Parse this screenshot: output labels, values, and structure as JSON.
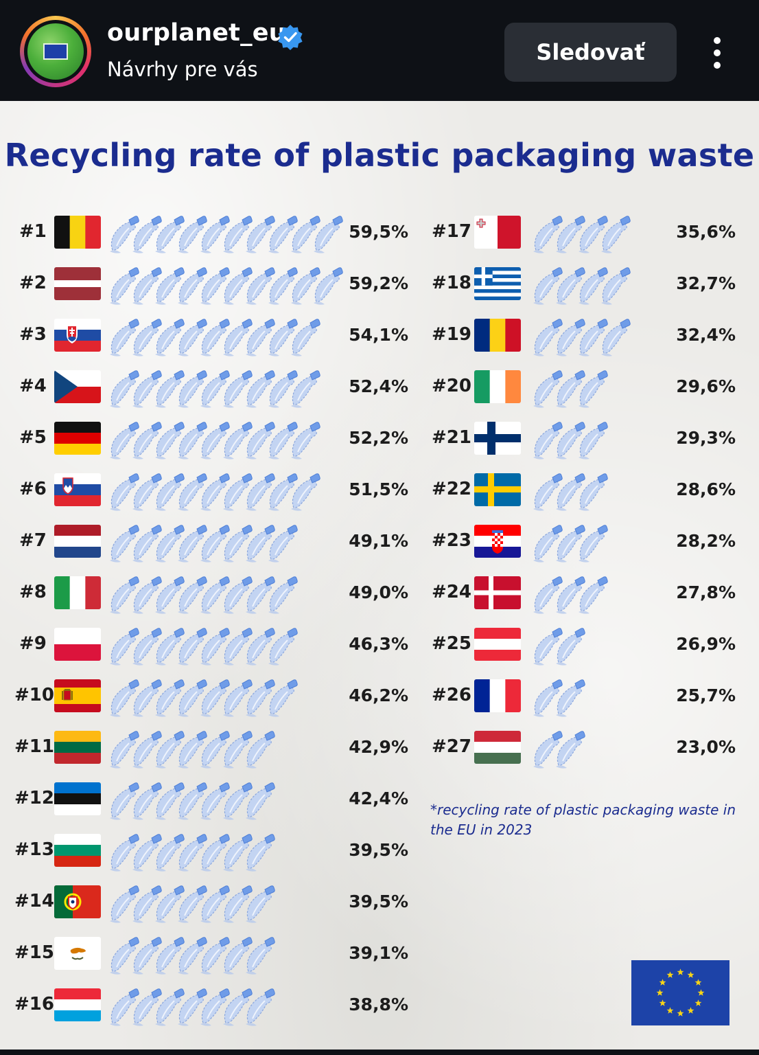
{
  "header": {
    "account_name": "ourplanet_eu",
    "subtitle": "Návrhy pre vás",
    "follow_label": "Sledovať",
    "verified_icon": "verified-badge-icon",
    "menu_icon": "more-vertical-icon",
    "colors": {
      "background": "#0e1116",
      "button": "#2a2e35",
      "verified": "#3897f0"
    }
  },
  "infographic": {
    "title": "Recycling rate of plastic packaging waste",
    "footnote": "*recycling rate of plastic packaging waste in the EU in 2023",
    "logo": "eu-flag-logo",
    "colors": {
      "title": "#1b2c8f",
      "text": "#1c1c1c",
      "bottle": "#b9cdf0"
    }
  },
  "chart_data": {
    "type": "bar",
    "title": "Recycling rate of plastic packaging waste",
    "unit": "%",
    "ranking": [
      {
        "rank": "#1",
        "country": "Belgium",
        "flag": "belgium",
        "label": "59,5%",
        "value": 59.5
      },
      {
        "rank": "#2",
        "country": "Latvia",
        "flag": "latvia",
        "label": "59,2%",
        "value": 59.2
      },
      {
        "rank": "#3",
        "country": "Slovakia",
        "flag": "slovakia",
        "label": "54,1%",
        "value": 54.1
      },
      {
        "rank": "#4",
        "country": "Czechia",
        "flag": "czechia",
        "label": "52,4%",
        "value": 52.4
      },
      {
        "rank": "#5",
        "country": "Germany",
        "flag": "germany",
        "label": "52,2%",
        "value": 52.2
      },
      {
        "rank": "#6",
        "country": "Slovenia",
        "flag": "slovenia",
        "label": "51,5%",
        "value": 51.5
      },
      {
        "rank": "#7",
        "country": "Netherlands",
        "flag": "netherlands",
        "label": "49,1%",
        "value": 49.1
      },
      {
        "rank": "#8",
        "country": "Italy",
        "flag": "italy",
        "label": "49,0%",
        "value": 49.0
      },
      {
        "rank": "#9",
        "country": "Poland",
        "flag": "poland",
        "label": "46,3%",
        "value": 46.3
      },
      {
        "rank": "#10",
        "country": "Spain",
        "flag": "spain",
        "label": "46,2%",
        "value": 46.2
      },
      {
        "rank": "#11",
        "country": "Lithuania",
        "flag": "lithuania",
        "label": "42,9%",
        "value": 42.9
      },
      {
        "rank": "#12",
        "country": "Estonia",
        "flag": "estonia",
        "label": "42,4%",
        "value": 42.4
      },
      {
        "rank": "#13",
        "country": "Bulgaria",
        "flag": "bulgaria",
        "label": "39,5%",
        "value": 39.5
      },
      {
        "rank": "#14",
        "country": "Portugal",
        "flag": "portugal",
        "label": "39,5%",
        "value": 39.5
      },
      {
        "rank": "#15",
        "country": "Cyprus",
        "flag": "cyprus",
        "label": "39,1%",
        "value": 39.1
      },
      {
        "rank": "#16",
        "country": "Luxembourg",
        "flag": "luxembourg",
        "label": "38,8%",
        "value": 38.8
      },
      {
        "rank": "#17",
        "country": "Malta",
        "flag": "malta",
        "label": "35,6%",
        "value": 35.6
      },
      {
        "rank": "#18",
        "country": "Greece",
        "flag": "greece",
        "label": "32,7%",
        "value": 32.7
      },
      {
        "rank": "#19",
        "country": "Romania",
        "flag": "romania",
        "label": "32,4%",
        "value": 32.4
      },
      {
        "rank": "#20",
        "country": "Ireland",
        "flag": "ireland",
        "label": "29,6%",
        "value": 29.6
      },
      {
        "rank": "#21",
        "country": "Finland",
        "flag": "finland",
        "label": "29,3%",
        "value": 29.3
      },
      {
        "rank": "#22",
        "country": "Sweden",
        "flag": "sweden",
        "label": "28,6%",
        "value": 28.6
      },
      {
        "rank": "#23",
        "country": "Croatia",
        "flag": "croatia",
        "label": "28,2%",
        "value": 28.2
      },
      {
        "rank": "#24",
        "country": "Denmark",
        "flag": "denmark",
        "label": "27,8%",
        "value": 27.8
      },
      {
        "rank": "#25",
        "country": "Austria",
        "flag": "austria",
        "label": "26,9%",
        "value": 26.9
      },
      {
        "rank": "#26",
        "country": "France",
        "flag": "france",
        "label": "25,7%",
        "value": 25.7
      },
      {
        "rank": "#27",
        "country": "Hungary",
        "flag": "hungary",
        "label": "23,0%",
        "value": 23.0
      }
    ]
  }
}
